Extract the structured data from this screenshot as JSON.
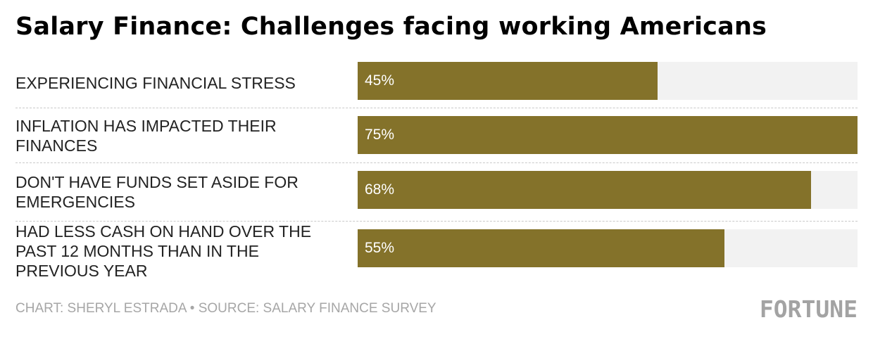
{
  "chart_data": {
    "type": "bar",
    "orientation": "horizontal",
    "title": "Salary Finance: Challenges facing working Americans",
    "categories": [
      "EXPERIENCING FINANCIAL STRESS",
      "INFLATION HAS IMPACTED THEIR FINANCES",
      "DON'T HAVE FUNDS SET ASIDE FOR EMERGENCIES",
      "HAD LESS CASH ON HAND OVER THE PAST 12 MONTHS THAN IN THE PREVIOUS YEAR"
    ],
    "values": [
      45,
      75,
      68,
      55
    ],
    "value_labels": [
      "45%",
      "75%",
      "68%",
      "55%"
    ],
    "xlim": [
      0,
      75
    ],
    "grid": false,
    "bar_color": "#84722a",
    "track_color": "#f2f2f2"
  },
  "footer": {
    "credit": "CHART: SHERYL ESTRADA • SOURCE: SALARY FINANCE SURVEY",
    "logo": "FORTUNE"
  }
}
